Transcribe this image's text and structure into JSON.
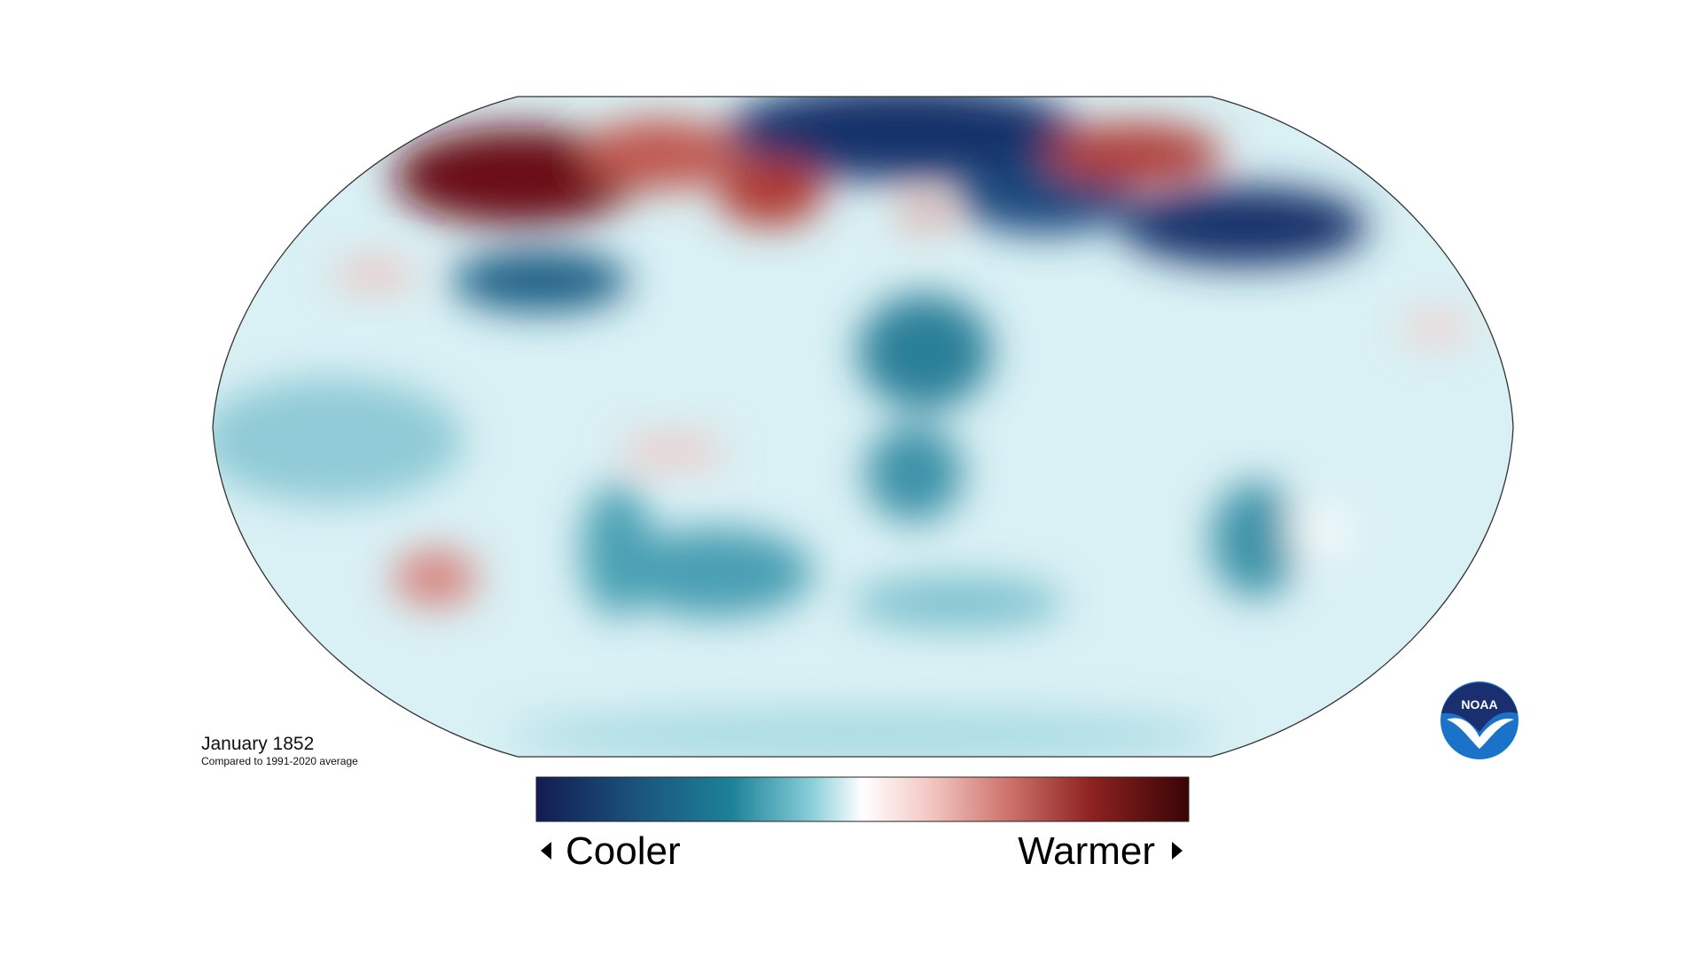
{
  "map": {
    "title": "January 1852",
    "subtitle": "Compared to 1991-2020 average"
  },
  "legend": {
    "low": "Cooler",
    "high": "Warmer"
  },
  "logo": "NOAA"
}
